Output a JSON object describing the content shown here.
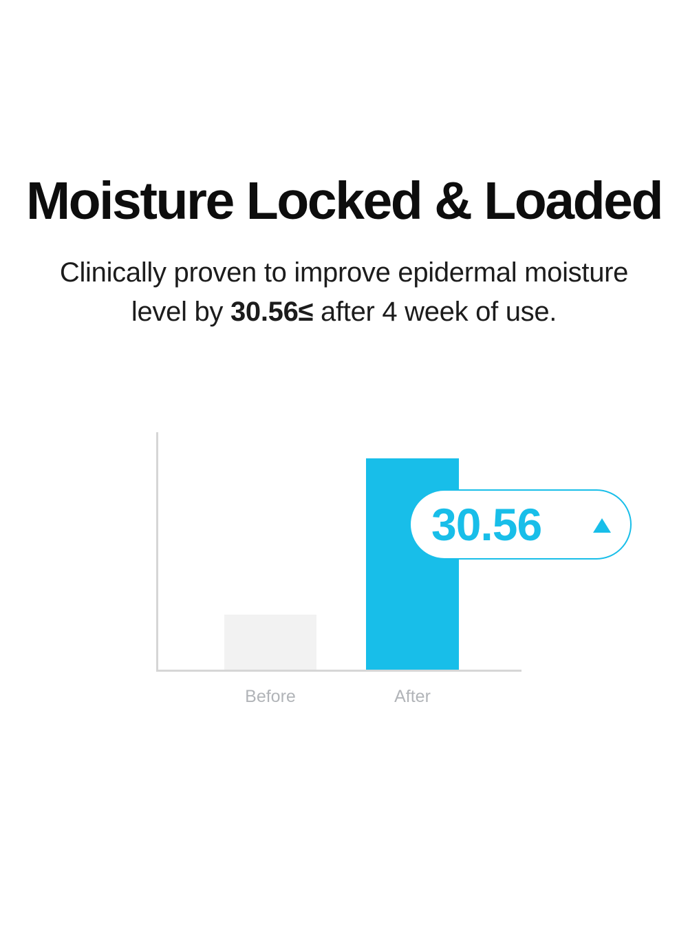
{
  "headline": "Moisture Locked & Loaded",
  "subtitle": {
    "line1": "Clinically proven to improve epidermal moisture",
    "line2_prefix": "level by ",
    "line2_bold": "30.56≤",
    "line2_suffix": " after 4 week of use."
  },
  "callout": {
    "value": "30.56",
    "icon": "up-triangle-icon"
  },
  "chart_data": {
    "type": "bar",
    "categories": [
      "Before",
      "After"
    ],
    "values": [
      8,
      30.56
    ],
    "value_labels": [
      "",
      "30.56"
    ],
    "title": "",
    "xlabel": "",
    "ylabel": "",
    "ylim": [
      0,
      34.4
    ],
    "grid": false,
    "legend": false,
    "bar_colors": [
      "#f2f2f2",
      "#18bee9"
    ],
    "annotation": {
      "target": "After",
      "label": "30.56",
      "marker": "up-triangle"
    }
  },
  "colors": {
    "accent": "#18bee9",
    "bar_before": "#f2f2f2",
    "axis": "#d6d6d6",
    "label": "#b1b4b8",
    "text": "#1c1c1c",
    "heading": "#0d0d0d"
  }
}
